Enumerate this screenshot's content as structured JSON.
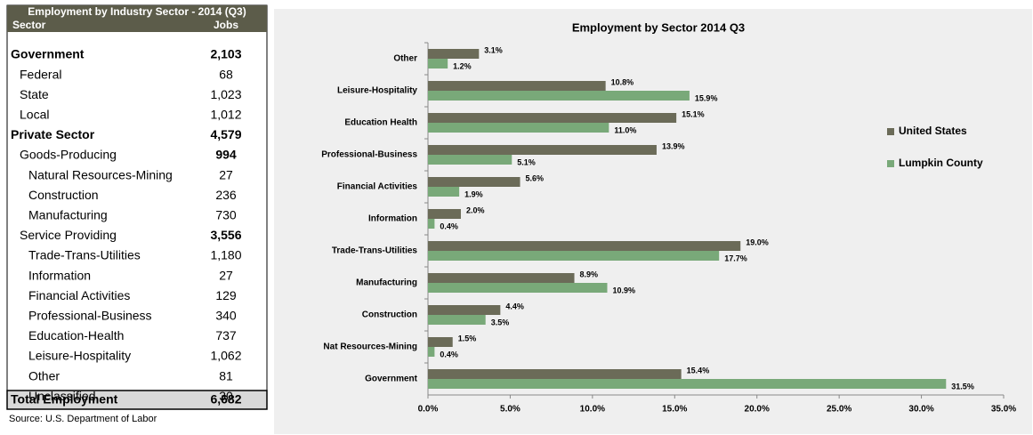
{
  "table": {
    "title": "Employment by Industry Sector - 2014 (Q3)",
    "headers": [
      "Sector",
      "Jobs"
    ],
    "rows": [
      {
        "label": "Government",
        "jobs": "2,103",
        "level": 0
      },
      {
        "label": "Federal",
        "jobs": "68",
        "level": 1
      },
      {
        "label": "State",
        "jobs": "1,023",
        "level": 1
      },
      {
        "label": "Local",
        "jobs": "1,012",
        "level": 1
      },
      {
        "label": "Private Sector",
        "jobs": "4,579",
        "level": 0
      },
      {
        "label": "Goods-Producing",
        "jobs": "994",
        "level": 1,
        "subtotal": true
      },
      {
        "label": "Natural Resources-Mining",
        "jobs": "27",
        "level": 2
      },
      {
        "label": "Construction",
        "jobs": "236",
        "level": 2
      },
      {
        "label": "Manufacturing",
        "jobs": "730",
        "level": 2
      },
      {
        "label": "Service Providing",
        "jobs": "3,556",
        "level": 1,
        "subtotal": true
      },
      {
        "label": "Trade-Trans-Utilities",
        "jobs": "1,180",
        "level": 2
      },
      {
        "label": "Information",
        "jobs": "27",
        "level": 2
      },
      {
        "label": "Financial Activities",
        "jobs": "129",
        "level": 2
      },
      {
        "label": "Professional-Business",
        "jobs": "340",
        "level": 2
      },
      {
        "label": "Education-Health",
        "jobs": "737",
        "level": 2
      },
      {
        "label": "Leisure-Hospitality",
        "jobs": "1,062",
        "level": 2
      },
      {
        "label": "Other",
        "jobs": "81",
        "level": 2
      },
      {
        "label": "Unclassified",
        "jobs": "30",
        "level": 2
      }
    ],
    "total": {
      "label": "Total Employment",
      "jobs": "6,682"
    },
    "source": "Source: U.S. Department of Labor"
  },
  "chart_data": {
    "type": "barh",
    "title": "Employment by Sector  2014 Q3",
    "categories": [
      "Other",
      "Leisure-Hospitality",
      "Education Health",
      "Professional-Business",
      "Financial Activities",
      "Information",
      "Trade-Trans-Utilities",
      "Manufacturing",
      "Construction",
      "Nat Resources-Mining",
      "Government"
    ],
    "series": [
      {
        "name": "United States",
        "color": "#6b6b58",
        "values": [
          3.1,
          10.8,
          15.1,
          13.9,
          5.6,
          2.0,
          19.0,
          8.9,
          4.4,
          1.5,
          15.4
        ],
        "value_labels": [
          "3.1%",
          "10.8%",
          "15.1%",
          "13.9%",
          "5.6%",
          "2.0%",
          "19.0%",
          "8.9%",
          "4.4%",
          "1.5%",
          "15.4%"
        ]
      },
      {
        "name": "Lumpkin County",
        "color": "#79a979",
        "values": [
          1.2,
          15.9,
          11.0,
          5.1,
          1.9,
          0.4,
          17.7,
          10.9,
          3.5,
          0.4,
          31.5
        ],
        "value_labels": [
          "1.2%",
          "15.9%",
          "11.0%",
          "5.1%",
          "1.9%",
          "0.4%",
          "17.7%",
          "10.9%",
          "3.5%",
          "0.4%",
          "31.5%"
        ]
      }
    ],
    "xlim": [
      0,
      35
    ],
    "xticks": [
      {
        "value": 0,
        "label": "0.0%"
      },
      {
        "value": 5,
        "label": "5.0%"
      },
      {
        "value": 10,
        "label": "10.0%"
      },
      {
        "value": 15,
        "label": "15.0%"
      },
      {
        "value": 20,
        "label": "20.0%"
      },
      {
        "value": 25,
        "label": "25.0%"
      },
      {
        "value": 30,
        "label": "30.0%"
      },
      {
        "value": 35,
        "label": "35.0%"
      }
    ],
    "legend": "right"
  }
}
